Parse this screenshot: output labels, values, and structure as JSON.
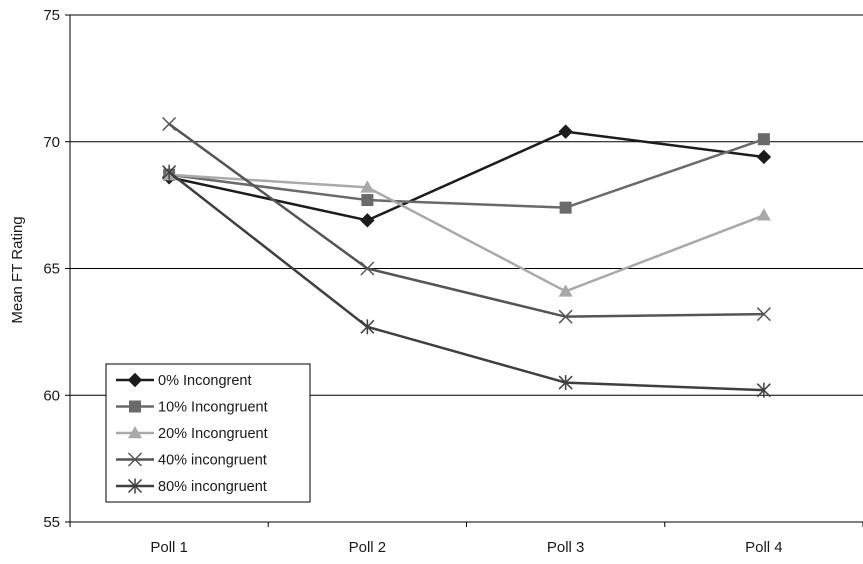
{
  "chart_data": {
    "type": "line",
    "title": "",
    "xlabel": "",
    "ylabel": "Mean FT Rating",
    "categories": [
      "Poll 1",
      "Poll 2",
      "Poll 3",
      "Poll 4"
    ],
    "ylim": [
      55,
      75
    ],
    "yticks": [
      55,
      60,
      65,
      70,
      75
    ],
    "grid": "horizontal",
    "legend_position": "bottom-left",
    "series": [
      {
        "name": "0% Incongrent",
        "marker": "diamond",
        "color": "#1c1c1c",
        "values": [
          68.6,
          66.9,
          70.4,
          69.4
        ]
      },
      {
        "name": "10% Incongruent",
        "marker": "square",
        "color": "#6a6a6a",
        "values": [
          68.7,
          67.7,
          67.4,
          70.1
        ]
      },
      {
        "name": "20% Incongruent",
        "marker": "triangle",
        "color": "#a9a9a9",
        "values": [
          68.7,
          68.2,
          64.1,
          67.1
        ]
      },
      {
        "name": "40% incongruent",
        "marker": "x",
        "color": "#555555",
        "values": [
          70.7,
          65.0,
          63.1,
          63.2
        ]
      },
      {
        "name": "80% incongruent",
        "marker": "star",
        "color": "#3f3f3f",
        "values": [
          68.8,
          62.7,
          60.5,
          60.2
        ]
      }
    ]
  }
}
